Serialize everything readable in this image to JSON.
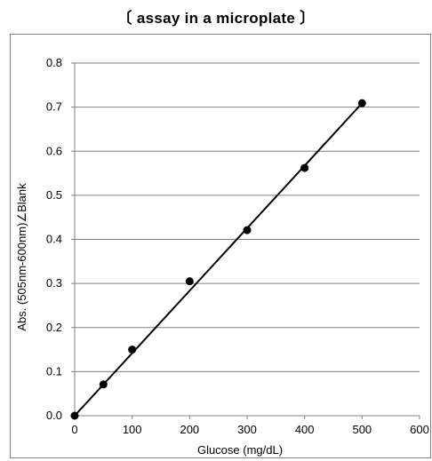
{
  "chart_data": {
    "type": "scatter",
    "title": "〔 assay in a microplate 〕",
    "xlabel": "Glucose (mg/dL)",
    "ylabel": "Abs. (505nm-600nm)∠Blank",
    "xlim": [
      0,
      600
    ],
    "ylim": [
      0.0,
      0.8
    ],
    "x_ticks": [
      "0",
      "100",
      "200",
      "300",
      "400",
      "500",
      "600"
    ],
    "y_ticks": [
      "0.0",
      "0.1",
      "0.2",
      "0.3",
      "0.4",
      "0.5",
      "0.6",
      "0.7",
      "0.8"
    ],
    "grid": "horizontal",
    "legend": "none",
    "series": [
      {
        "x": [
          0,
          50,
          100,
          200,
          300,
          400,
          500
        ],
        "y": [
          0.0,
          0.071,
          0.15,
          0.305,
          0.421,
          0.562,
          0.709
        ]
      }
    ],
    "trendline": {
      "type": "linear",
      "from": [
        0,
        0.0
      ],
      "to": [
        500,
        0.709
      ]
    },
    "colors": {
      "point": "#000000",
      "line": "#000000",
      "grid": "#808080",
      "axis": "#808080"
    }
  }
}
